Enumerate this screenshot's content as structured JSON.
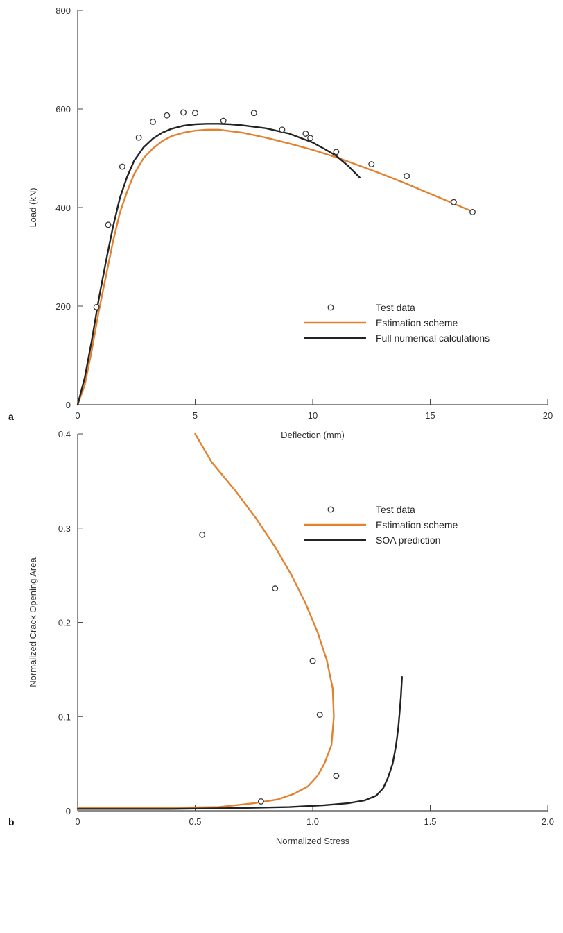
{
  "chart_data": [
    {
      "panel_label": "a",
      "type": "line",
      "title": "",
      "xlabel": "Deflection (mm)",
      "ylabel": "Load (kN)",
      "xlim": [
        0,
        20
      ],
      "ylim": [
        0,
        800
      ],
      "xticks": [
        0,
        5,
        10,
        15,
        20
      ],
      "yticks": [
        0,
        200,
        400,
        600,
        800
      ],
      "grid": false,
      "legend_position": "bottom-right",
      "series": [
        {
          "name": "Test data",
          "kind": "markers",
          "color": "#333333",
          "x": [
            0.8,
            1.3,
            1.9,
            2.6,
            3.2,
            3.8,
            4.5,
            5.0,
            6.2,
            7.5,
            8.7,
            9.7,
            9.9,
            11.0,
            12.5,
            14.0,
            16.0,
            16.8
          ],
          "y": [
            198,
            365,
            483,
            542,
            574,
            587,
            593,
            592,
            576,
            592,
            558,
            550,
            541,
            513,
            488,
            464,
            411,
            391
          ]
        },
        {
          "name": "Estimation scheme",
          "kind": "line",
          "color": "#e2812f",
          "x": [
            0,
            0.3,
            0.6,
            0.9,
            1.2,
            1.5,
            1.8,
            2.1,
            2.4,
            2.8,
            3.2,
            3.6,
            4.0,
            4.5,
            5.0,
            5.5,
            6.0,
            7.0,
            8.0,
            9.0,
            10.0,
            11.0,
            12.0,
            13.0,
            14.0,
            15.0,
            16.0,
            16.8
          ],
          "y": [
            0,
            40,
            110,
            190,
            260,
            330,
            390,
            432,
            468,
            500,
            520,
            535,
            545,
            552,
            556,
            558,
            558,
            552,
            542,
            530,
            517,
            502,
            485,
            467,
            448,
            428,
            408,
            392
          ]
        },
        {
          "name": "Full numerical calculations",
          "kind": "line",
          "color": "#222222",
          "x": [
            0,
            0.3,
            0.6,
            0.9,
            1.2,
            1.5,
            1.8,
            2.1,
            2.4,
            2.8,
            3.2,
            3.6,
            4.0,
            4.5,
            5.0,
            5.5,
            6.0,
            6.5,
            7.0,
            8.0,
            9.0,
            10.0,
            10.5,
            11.0,
            11.5,
            12.0
          ],
          "y": [
            0,
            55,
            130,
            215,
            290,
            360,
            420,
            462,
            495,
            522,
            540,
            552,
            560,
            566,
            569,
            570,
            570,
            569,
            567,
            561,
            550,
            532,
            519,
            505,
            485,
            461
          ]
        }
      ]
    },
    {
      "panel_label": "b",
      "type": "line",
      "title": "",
      "xlabel": "Normalized Stress",
      "ylabel": "Normalized Crack Opening Area",
      "xlim": [
        0,
        2.0
      ],
      "ylim": [
        0,
        0.4
      ],
      "xticks": [
        "0",
        "0.5",
        "1.0",
        "1.5",
        "2.0"
      ],
      "yticks": [
        "0",
        "0.1",
        "0.2",
        "0.3",
        "0.4"
      ],
      "grid": false,
      "legend_position": "top-right",
      "series": [
        {
          "name": "Test data",
          "kind": "markers",
          "color": "#333333",
          "x": [
            0.53,
            0.84,
            1.0,
            1.03,
            1.1,
            0.78
          ],
          "y": [
            0.293,
            0.236,
            0.159,
            0.102,
            0.037,
            0.01
          ]
        },
        {
          "name": "Estimation scheme",
          "kind": "line",
          "color": "#e2812f",
          "x": [
            0.0,
            0.3,
            0.6,
            0.75,
            0.85,
            0.92,
            0.98,
            1.02,
            1.05,
            1.08,
            1.09,
            1.085,
            1.06,
            1.02,
            0.97,
            0.91,
            0.84,
            0.76,
            0.67,
            0.57,
            0.5
          ],
          "y": [
            0.003,
            0.003,
            0.004,
            0.008,
            0.012,
            0.018,
            0.026,
            0.037,
            0.05,
            0.07,
            0.1,
            0.13,
            0.16,
            0.19,
            0.22,
            0.25,
            0.28,
            0.31,
            0.34,
            0.37,
            0.4
          ]
        },
        {
          "name": "SOA prediction",
          "kind": "line",
          "color": "#222222",
          "x": [
            0.0,
            0.4,
            0.7,
            0.9,
            1.05,
            1.15,
            1.22,
            1.27,
            1.3,
            1.32,
            1.34,
            1.355,
            1.365,
            1.375,
            1.38
          ],
          "y": [
            0.002,
            0.002,
            0.003,
            0.004,
            0.006,
            0.008,
            0.011,
            0.016,
            0.024,
            0.035,
            0.05,
            0.07,
            0.09,
            0.12,
            0.142
          ]
        }
      ]
    }
  ]
}
